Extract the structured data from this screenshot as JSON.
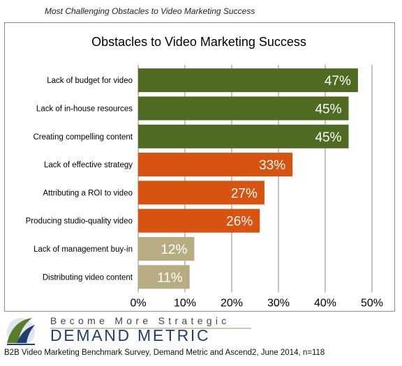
{
  "caption": "Most Challenging Obstacles to Video Marketing Success",
  "logo": {
    "tagline": "Become More Strategic",
    "brand": "DEMAND METRIC"
  },
  "source": "B2B Video Marketing Benchmark Survey, Demand Metric and Ascend2, June 2014, n=118",
  "colors": {
    "green": "#4f6b22",
    "orange": "#d8530f",
    "tan": "#b8ad82",
    "grid": "#8a8a8a"
  },
  "chart_data": {
    "type": "bar",
    "orientation": "horizontal",
    "title": "Obstacles to Video Marketing Success",
    "categories": [
      "Lack of budget for video",
      "Lack of in-house resources",
      "Creating compelling content",
      "Lack of effective strategy",
      "Attributing a ROI to video",
      "Producing studio-quality video",
      "Lack of management buy-in",
      "Distributing video content"
    ],
    "values": [
      47,
      45,
      45,
      33,
      27,
      26,
      12,
      11
    ],
    "value_labels": [
      "47%",
      "45%",
      "45%",
      "33%",
      "27%",
      "26%",
      "12%",
      "11%"
    ],
    "bar_colors": [
      "green",
      "green",
      "green",
      "orange",
      "orange",
      "orange",
      "tan",
      "tan"
    ],
    "xlim": [
      0,
      50
    ],
    "xticks": [
      "0%",
      "10%",
      "20%",
      "30%",
      "40%",
      "50%"
    ],
    "grid": "vertical",
    "legend": "none"
  }
}
